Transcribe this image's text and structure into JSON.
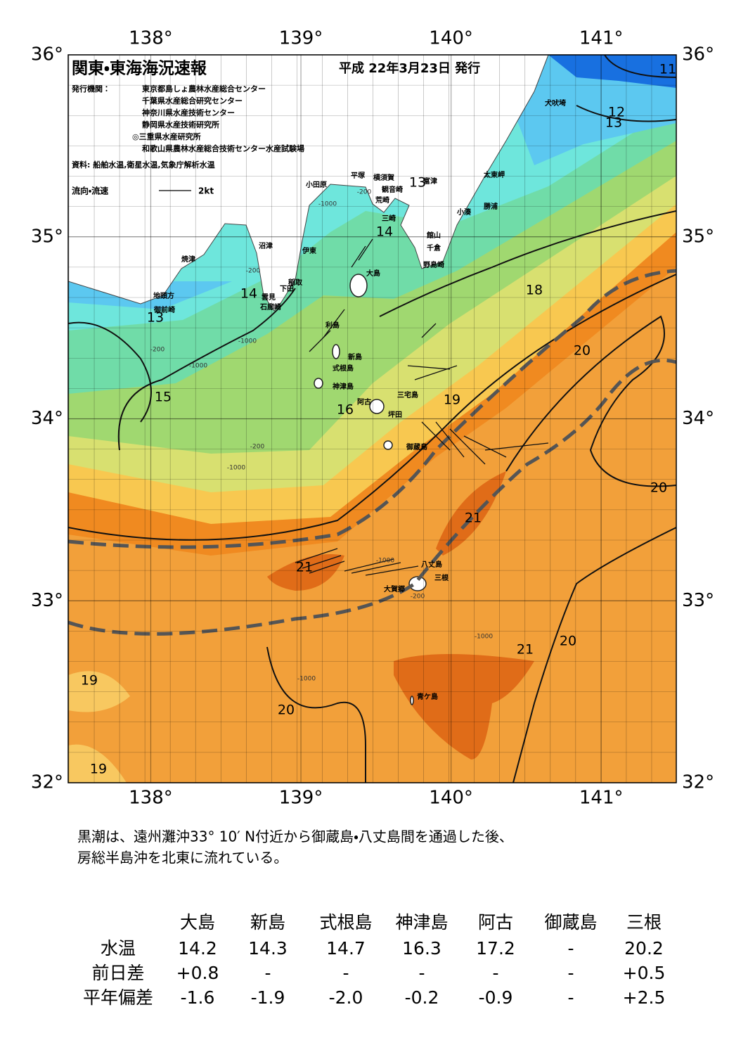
{
  "map": {
    "lon_ticks": [
      {
        "value": 138,
        "label": "138°"
      },
      {
        "value": 139,
        "label": "139°"
      },
      {
        "value": 140,
        "label": "140°"
      },
      {
        "value": 141,
        "label": "141°"
      }
    ],
    "lat_ticks": [
      {
        "value": 36,
        "label": "36°"
      },
      {
        "value": 35,
        "label": "35°"
      },
      {
        "value": 34,
        "label": "34°"
      },
      {
        "value": 33,
        "label": "33°"
      },
      {
        "value": 32,
        "label": "32°"
      }
    ],
    "xlim": [
      137.45,
      141.5
    ],
    "ylim": [
      32,
      36
    ],
    "title": "関東・東海海況速報",
    "date": "平成 22年3月23日 発行",
    "issuer_label": "発行機関：",
    "issuers": [
      "東京都島しょ農林水産総合センター",
      "千葉県水産総合研究センター",
      "神奈川県水産技術センター",
      "静岡県水産技術研究所",
      "◎三重県水産研究所",
      "和歌山県農林水産総合技術センター水産試験場"
    ],
    "sources": "資料: 船舶水温,衛星水温,気象庁解析水温",
    "legend_label": "流向・流速",
    "legend_speed": "2kt",
    "places": [
      "小田原",
      "平塚",
      "横須賀",
      "観音崎",
      "富津",
      "荒崎",
      "三崎",
      "太東岬",
      "犬吠埼",
      "勝浦",
      "小湊",
      "館山",
      "千倉",
      "野島崎",
      "沼津",
      "伊東",
      "焼津",
      "稲取",
      "大島",
      "下田",
      "雲見",
      "石廊崎",
      "地頭方",
      "御前崎",
      "利島",
      "新島",
      "式根島",
      "神津島",
      "三宅島",
      "阿古",
      "坪田",
      "御蔵島",
      "八丈島",
      "三根",
      "大賀郷",
      "青ケ島"
    ],
    "isotherm_labels": [
      11,
      12,
      13,
      13,
      14,
      14,
      13,
      18,
      20,
      15,
      16,
      19,
      20,
      21,
      21,
      21,
      20,
      19,
      20,
      19
    ],
    "depth_labels": [
      "-200",
      "-1000",
      "-200",
      "-1000",
      "-200",
      "-1000",
      "-200",
      "-1000",
      "-1000",
      "-1000",
      "-1000",
      "-200"
    ]
  },
  "description": [
    "黒潮は、遠州灘沖33° 10′ N付近から御蔵島・八丈島間を通過した後、",
    "房総半島沖を北東に流れている。"
  ],
  "table": {
    "header": [
      "大島",
      "新島",
      "式根島",
      "神津島",
      "阿古",
      "御蔵島",
      "三根"
    ],
    "rows": [
      {
        "label": "水温",
        "values": [
          "14.2",
          "14.3",
          "14.7",
          "16.3",
          "17.2",
          "-",
          "20.2"
        ]
      },
      {
        "label": "前日差",
        "values": [
          "+0.8",
          "-",
          "-",
          "-",
          "-",
          "-",
          "+0.5"
        ]
      },
      {
        "label": "平年偏差",
        "values": [
          "-1.6",
          "-1.9",
          "-2.0",
          "-0.2",
          "-0.9",
          "-",
          "+2.5"
        ]
      }
    ]
  }
}
